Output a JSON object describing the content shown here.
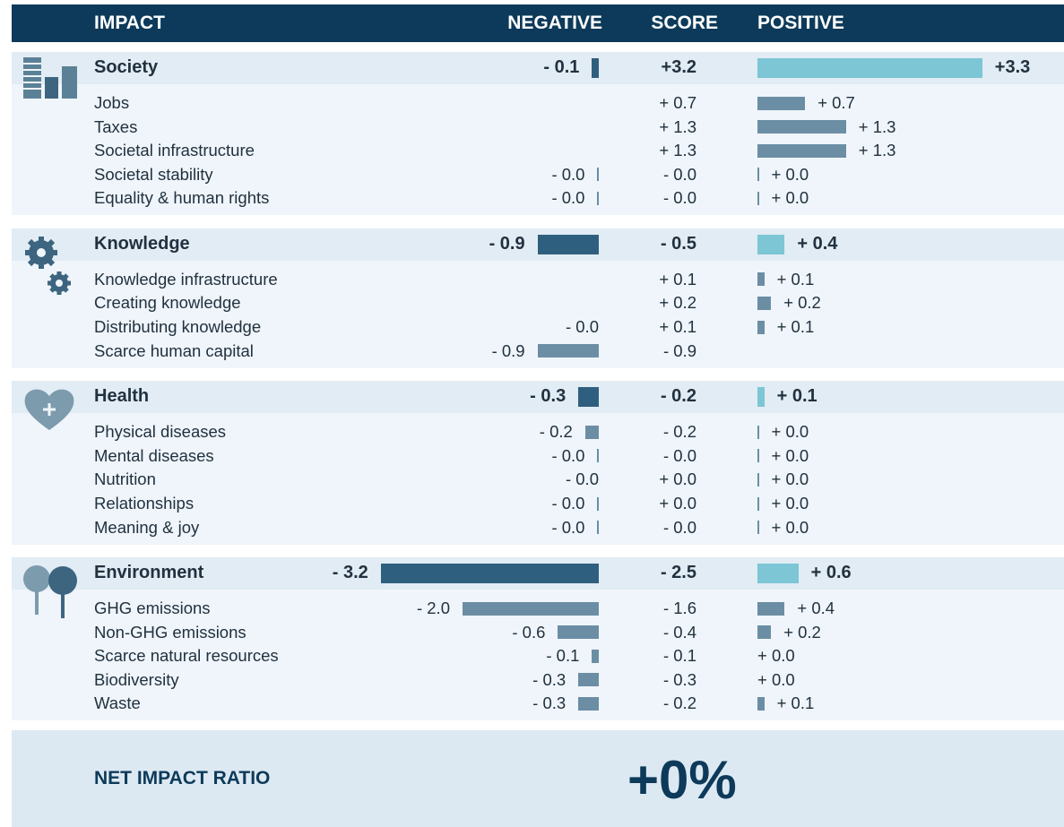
{
  "header": {
    "columns": [
      "IMPACT",
      "NEGATIVE",
      "SCORE",
      "POSITIVE"
    ]
  },
  "groups": [
    {
      "name": "Society",
      "negative": {
        "value": -0.1,
        "label": "- 0.1"
      },
      "score": "+3.2",
      "positive": {
        "value": 3.3,
        "label": "+3.3"
      },
      "items": [
        {
          "name": "Jobs",
          "negative": null,
          "score": "+ 0.7",
          "positive": {
            "value": 0.7,
            "label": "+ 0.7"
          }
        },
        {
          "name": "Taxes",
          "negative": null,
          "score": "+ 1.3",
          "positive": {
            "value": 1.3,
            "label": "+ 1.3"
          }
        },
        {
          "name": "Societal infrastructure",
          "negative": null,
          "score": "+ 1.3",
          "positive": {
            "value": 1.3,
            "label": "+ 1.3"
          }
        },
        {
          "name": "Societal stability",
          "negative": {
            "value": -0.02,
            "label": "- 0.0"
          },
          "score": "- 0.0",
          "positive": {
            "value": 0.02,
            "label": "+ 0.0"
          }
        },
        {
          "name": "Equality & human rights",
          "negative": {
            "value": -0.02,
            "label": "- 0.0"
          },
          "score": "- 0.0",
          "positive": {
            "value": 0.02,
            "label": "+ 0.0"
          }
        }
      ]
    },
    {
      "name": "Knowledge",
      "negative": {
        "value": -0.9,
        "label": "- 0.9"
      },
      "score": "- 0.5",
      "positive": {
        "value": 0.4,
        "label": "+ 0.4"
      },
      "items": [
        {
          "name": "Knowledge infrastructure",
          "negative": null,
          "score": "+ 0.1",
          "positive": {
            "value": 0.1,
            "label": "+ 0.1"
          }
        },
        {
          "name": "Creating knowledge",
          "negative": null,
          "score": "+ 0.2",
          "positive": {
            "value": 0.2,
            "label": "+ 0.2"
          }
        },
        {
          "name": "Distributing knowledge",
          "negative": {
            "value": 0,
            "label": "- 0.0"
          },
          "score": "+ 0.1",
          "positive": {
            "value": 0.1,
            "label": "+ 0.1"
          }
        },
        {
          "name": "Scarce human capital",
          "negative": {
            "value": -0.9,
            "label": "- 0.9"
          },
          "score": "- 0.9",
          "positive": null
        }
      ]
    },
    {
      "name": "Health",
      "negative": {
        "value": -0.3,
        "label": "- 0.3"
      },
      "score": "- 0.2",
      "positive": {
        "value": 0.1,
        "label": "+ 0.1"
      },
      "items": [
        {
          "name": "Physical diseases",
          "negative": {
            "value": -0.2,
            "label": "- 0.2"
          },
          "score": "- 0.2",
          "positive": {
            "value": 0.02,
            "label": "+ 0.0"
          }
        },
        {
          "name": "Mental diseases",
          "negative": {
            "value": -0.02,
            "label": "- 0.0"
          },
          "score": "- 0.0",
          "positive": {
            "value": 0.02,
            "label": "+ 0.0"
          }
        },
        {
          "name": "Nutrition",
          "negative": {
            "value": 0,
            "label": "- 0.0"
          },
          "score": "+ 0.0",
          "positive": {
            "value": 0.02,
            "label": "+ 0.0"
          }
        },
        {
          "name": "Relationships",
          "negative": {
            "value": -0.02,
            "label": "- 0.0"
          },
          "score": "+ 0.0",
          "positive": {
            "value": 0.02,
            "label": "+ 0.0"
          }
        },
        {
          "name": "Meaning & joy",
          "negative": {
            "value": -0.02,
            "label": "- 0.0"
          },
          "score": "- 0.0",
          "positive": {
            "value": 0.02,
            "label": "+ 0.0"
          }
        }
      ]
    },
    {
      "name": "Environment",
      "negative": {
        "value": -3.2,
        "label": "- 3.2"
      },
      "score": "- 2.5",
      "positive": {
        "value": 0.6,
        "label": "+ 0.6"
      },
      "items": [
        {
          "name": "GHG emissions",
          "negative": {
            "value": -2.0,
            "label": "- 2.0"
          },
          "score": "- 1.6",
          "positive": {
            "value": 0.4,
            "label": "+ 0.4"
          }
        },
        {
          "name": "Non-GHG emissions",
          "negative": {
            "value": -0.6,
            "label": "- 0.6"
          },
          "score": "- 0.4",
          "positive": {
            "value": 0.2,
            "label": "+ 0.2"
          }
        },
        {
          "name": "Scarce natural resources",
          "negative": {
            "value": -0.1,
            "label": "- 0.1"
          },
          "score": "- 0.1",
          "positive": {
            "value": 0,
            "label": "+ 0.0"
          }
        },
        {
          "name": "Biodiversity",
          "negative": {
            "value": -0.3,
            "label": "- 0.3"
          },
          "score": "- 0.3",
          "positive": {
            "value": 0,
            "label": "+ 0.0"
          }
        },
        {
          "name": "Waste",
          "negative": {
            "value": -0.3,
            "label": "- 0.3"
          },
          "score": "- 0.2",
          "positive": {
            "value": 0.1,
            "label": "+ 0.1"
          }
        }
      ]
    }
  ],
  "net_impact": {
    "label": "NET IMPACT RATIO",
    "value": "+0%"
  }
}
